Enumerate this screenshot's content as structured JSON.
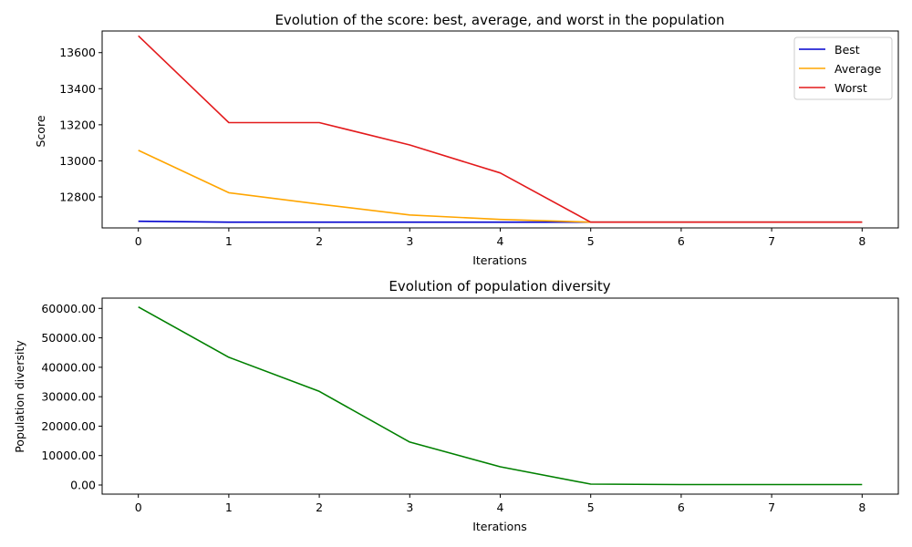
{
  "chart_data": [
    {
      "type": "line",
      "title": "Evolution of the score: best, average, and worst in the population",
      "xlabel": "Iterations",
      "ylabel": "Score",
      "x": [
        0,
        1,
        2,
        3,
        4,
        5,
        6,
        7,
        8
      ],
      "xlim": [
        -0.4,
        8.4
      ],
      "ylim": [
        12628,
        13720
      ],
      "xticks": [
        0,
        1,
        2,
        3,
        4,
        5,
        6,
        7,
        8
      ],
      "yticks": [
        12800,
        13000,
        13200,
        13400,
        13600
      ],
      "ytick_labels": [
        "12800",
        "13000",
        "13200",
        "13400",
        "13600"
      ],
      "grid": false,
      "legend_position": "top-right",
      "series": [
        {
          "name": "Best",
          "color": "#0000cd",
          "values": [
            12665,
            12660,
            12660,
            12660,
            12660,
            12660,
            12660,
            12660,
            12660
          ]
        },
        {
          "name": "Average",
          "color": "#ffa500",
          "values": [
            13058,
            12823,
            12760,
            12700,
            12675,
            12660,
            12660,
            12660,
            12660
          ]
        },
        {
          "name": "Worst",
          "color": "#e31a1c",
          "values": [
            13693,
            13212,
            13212,
            13088,
            12933,
            12660,
            12660,
            12660,
            12660
          ]
        }
      ]
    },
    {
      "type": "line",
      "title": "Evolution of population diversity",
      "xlabel": "Iterations",
      "ylabel": "Population diversity",
      "x": [
        0,
        1,
        2,
        3,
        4,
        5,
        6,
        7,
        8
      ],
      "xlim": [
        -0.4,
        8.4
      ],
      "ylim": [
        -3100,
        63500
      ],
      "xticks": [
        0,
        1,
        2,
        3,
        4,
        5,
        6,
        7,
        8
      ],
      "yticks": [
        0,
        10000,
        20000,
        30000,
        40000,
        50000,
        60000
      ],
      "ytick_labels": [
        "0.00",
        "10000.00",
        "20000.00",
        "30000.00",
        "40000.00",
        "50000.00",
        "60000.00"
      ],
      "grid": false,
      "series": [
        {
          "color": "#008000",
          "values": [
            60500,
            43400,
            31800,
            14600,
            6200,
            300,
            150,
            150,
            150
          ]
        }
      ]
    }
  ]
}
